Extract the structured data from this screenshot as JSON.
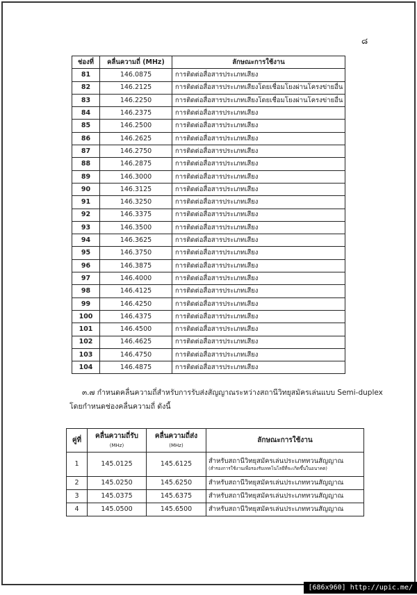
{
  "page_number": "๘",
  "table1": {
    "headers": [
      "ช่องที่",
      "คลื่นความถี่ (MHz)",
      "ลักษณะการใช้งาน"
    ],
    "rows": [
      [
        "81",
        "146.0875",
        "การติดต่อสื่อสารประเภทเสียง"
      ],
      [
        "82",
        "146.2125",
        "การติดต่อสื่อสารประเภทเสียงโดยเชื่อมโยงผ่านโครงข่ายอื่น"
      ],
      [
        "83",
        "146.2250",
        "การติดต่อสื่อสารประเภทเสียงโดยเชื่อมโยงผ่านโครงข่ายอื่น"
      ],
      [
        "84",
        "146.2375",
        "การติดต่อสื่อสารประเภทเสียง"
      ],
      [
        "85",
        "146.2500",
        "การติดต่อสื่อสารประเภทเสียง"
      ],
      [
        "86",
        "146.2625",
        "การติดต่อสื่อสารประเภทเสียง"
      ],
      [
        "87",
        "146.2750",
        "การติดต่อสื่อสารประเภทเสียง"
      ],
      [
        "88",
        "146.2875",
        "การติดต่อสื่อสารประเภทเสียง"
      ],
      [
        "89",
        "146.3000",
        "การติดต่อสื่อสารประเภทเสียง"
      ],
      [
        "90",
        "146.3125",
        "การติดต่อสื่อสารประเภทเสียง"
      ],
      [
        "91",
        "146.3250",
        "การติดต่อสื่อสารประเภทเสียง"
      ],
      [
        "92",
        "146.3375",
        "การติดต่อสื่อสารประเภทเสียง"
      ],
      [
        "93",
        "146.3500",
        "การติดต่อสื่อสารประเภทเสียง"
      ],
      [
        "94",
        "146.3625",
        "การติดต่อสื่อสารประเภทเสียง"
      ],
      [
        "95",
        "146.3750",
        "การติดต่อสื่อสารประเภทเสียง"
      ],
      [
        "96",
        "146.3875",
        "การติดต่อสื่อสารประเภทเสียง"
      ],
      [
        "97",
        "146.4000",
        "การติดต่อสื่อสารประเภทเสียง"
      ],
      [
        "98",
        "146.4125",
        "การติดต่อสื่อสารประเภทเสียง"
      ],
      [
        "99",
        "146.4250",
        "การติดต่อสื่อสารประเภทเสียง"
      ],
      [
        "100",
        "146.4375",
        "การติดต่อสื่อสารประเภทเสียง"
      ],
      [
        "101",
        "146.4500",
        "การติดต่อสื่อสารประเภทเสียง"
      ],
      [
        "102",
        "146.4625",
        "การติดต่อสื่อสารประเภทเสียง"
      ],
      [
        "103",
        "146.4750",
        "การติดต่อสื่อสารประเภทเสียง"
      ],
      [
        "104",
        "146.4875",
        "การติดต่อสื่อสารประเภทเสียง"
      ]
    ]
  },
  "paragraph": [
    "๓.๗  กำหนดคลื่นความถี่สำหรับการรับส่งสัญญาณระหว่างสถานีวิทยุสมัครเล่นแบบ Semi-duplex",
    "โดยกำหนดช่องคลื่นความถี่ ดังนี้"
  ],
  "table2": {
    "headers": [
      {
        "text": "คู่ที่"
      },
      {
        "text": "คลื่นความถี่รับ",
        "unit": "(MHz)"
      },
      {
        "text": "คลื่นความถี่ส่ง",
        "unit": "(MHz)"
      },
      {
        "text": "ลักษณะการใช้งาน"
      }
    ],
    "rows": [
      [
        "1",
        "145.0125",
        "145.6125",
        "สำหรับสถานีวิทยุสมัครเล่นประเภททวนสัญญาณ",
        "(สำรองการใช้งานเพื่อรองรับเทคโนโลยีที่จะเกิดขึ้นในอนาคต)"
      ],
      [
        "2",
        "145.0250",
        "145.6250",
        "สำหรับสถานีวิทยุสมัครเล่นประเภททวนสัญญาณ"
      ],
      [
        "3",
        "145.0375",
        "145.6375",
        "สำหรับสถานีวิทยุสมัครเล่นประเภททวนสัญญาณ"
      ],
      [
        "4",
        "145.0500",
        "145.6500",
        "สำหรับสถานีวิทยุสมัครเล่นประเภททวนสัญญาณ"
      ]
    ]
  },
  "footer": "[686x960] http://upic.me/"
}
